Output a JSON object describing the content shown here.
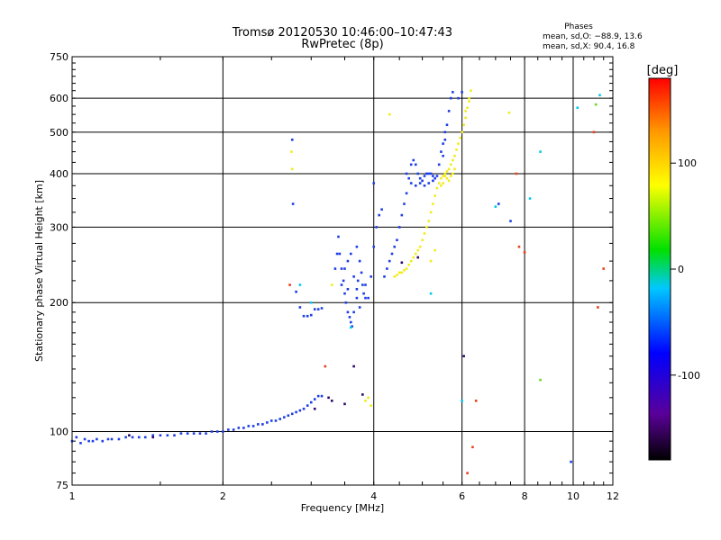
{
  "chart_data": {
    "type": "scatter",
    "title": "Tromsø 20120530 10:46:00–10:47:43",
    "subtitle": "RwPretec (8p)",
    "phases": {
      "heading": "Phases",
      "line1": "mean, sd,O: −88.9, 13.6",
      "line2": "mean, sd,X:  90.4, 16.8"
    },
    "xlabel": "Frequency [MHz]",
    "ylabel": "Stationary phase Virtual Height [km]",
    "x_scale": "log",
    "y_scale": "log",
    "xlim": [
      1,
      12
    ],
    "ylim": [
      75,
      750
    ],
    "x_ticks": [
      1,
      2,
      4,
      6,
      8,
      10,
      12
    ],
    "y_ticks": [
      75,
      100,
      200,
      300,
      400,
      500,
      600,
      750
    ],
    "grid": true,
    "colorbar": {
      "label": "[deg]",
      "range": [
        -180,
        180
      ],
      "ticks": [
        -100,
        0,
        100
      ]
    },
    "series": [
      {
        "color": "#1e3ee6",
        "phase_deg": -90,
        "points": [
          [
            1.0,
            95
          ],
          [
            1.02,
            97
          ],
          [
            1.04,
            94
          ],
          [
            1.06,
            96
          ],
          [
            1.08,
            95
          ],
          [
            1.1,
            95
          ],
          [
            1.12,
            96
          ],
          [
            1.15,
            95
          ],
          [
            1.18,
            96
          ],
          [
            1.2,
            96
          ],
          [
            1.24,
            96
          ],
          [
            1.28,
            97
          ],
          [
            1.32,
            97
          ],
          [
            1.36,
            97
          ],
          [
            1.4,
            97
          ],
          [
            1.45,
            98
          ],
          [
            1.5,
            98
          ],
          [
            1.55,
            98
          ],
          [
            1.6,
            98
          ],
          [
            1.65,
            99
          ],
          [
            1.7,
            99
          ],
          [
            1.75,
            99
          ],
          [
            1.8,
            99
          ],
          [
            1.85,
            99
          ],
          [
            1.9,
            100
          ],
          [
            1.95,
            100
          ],
          [
            2.0,
            100
          ],
          [
            2.05,
            101
          ],
          [
            2.1,
            101
          ],
          [
            2.15,
            102
          ],
          [
            2.2,
            102
          ],
          [
            2.25,
            103
          ],
          [
            2.3,
            103
          ],
          [
            2.35,
            104
          ],
          [
            2.4,
            104
          ],
          [
            2.45,
            105
          ],
          [
            2.5,
            106
          ],
          [
            2.55,
            106
          ],
          [
            2.6,
            107
          ],
          [
            2.65,
            108
          ],
          [
            2.7,
            109
          ],
          [
            2.75,
            110
          ],
          [
            2.8,
            111
          ],
          [
            2.85,
            112
          ],
          [
            2.9,
            113
          ],
          [
            2.95,
            115
          ],
          [
            3.0,
            117
          ],
          [
            3.05,
            119
          ],
          [
            3.1,
            121
          ],
          [
            3.15,
            121
          ],
          [
            2.8,
            212
          ],
          [
            2.85,
            195
          ],
          [
            2.9,
            186
          ],
          [
            2.95,
            186
          ],
          [
            3.0,
            187
          ],
          [
            3.05,
            193
          ],
          [
            3.1,
            193
          ],
          [
            3.15,
            194
          ],
          [
            3.35,
            240
          ],
          [
            3.38,
            260
          ],
          [
            3.4,
            285
          ],
          [
            3.42,
            260
          ],
          [
            3.45,
            240
          ],
          [
            3.48,
            225
          ],
          [
            3.5,
            210
          ],
          [
            3.52,
            200
          ],
          [
            3.55,
            190
          ],
          [
            3.58,
            185
          ],
          [
            3.6,
            180
          ],
          [
            3.62,
            176
          ],
          [
            3.65,
            190
          ],
          [
            3.7,
            215
          ],
          [
            3.72,
            225
          ],
          [
            3.75,
            250
          ],
          [
            3.78,
            235
          ],
          [
            3.8,
            220
          ],
          [
            3.82,
            210
          ],
          [
            3.85,
            205
          ],
          [
            3.9,
            205
          ],
          [
            3.95,
            230
          ],
          [
            4.0,
            270
          ],
          [
            4.05,
            300
          ],
          [
            4.1,
            320
          ],
          [
            4.15,
            330
          ],
          [
            3.5,
            240
          ],
          [
            3.55,
            250
          ],
          [
            3.6,
            260
          ],
          [
            3.7,
            270
          ],
          [
            3.45,
            220
          ],
          [
            3.55,
            215
          ],
          [
            3.65,
            230
          ],
          [
            3.7,
            205
          ],
          [
            3.75,
            195
          ],
          [
            3.85,
            220
          ],
          [
            4.2,
            230
          ],
          [
            4.25,
            240
          ],
          [
            4.3,
            250
          ],
          [
            4.35,
            260
          ],
          [
            4.4,
            270
          ],
          [
            4.45,
            280
          ],
          [
            4.5,
            300
          ],
          [
            4.55,
            320
          ],
          [
            4.6,
            340
          ],
          [
            4.65,
            360
          ],
          [
            4.7,
            390
          ],
          [
            4.75,
            420
          ],
          [
            4.8,
            430
          ],
          [
            4.85,
            420
          ],
          [
            4.9,
            400
          ],
          [
            4.95,
            390
          ],
          [
            5.0,
            385
          ],
          [
            5.05,
            395
          ],
          [
            5.1,
            400
          ],
          [
            5.15,
            400
          ],
          [
            5.2,
            400
          ],
          [
            5.25,
            395
          ],
          [
            5.3,
            390
          ],
          [
            5.35,
            395
          ],
          [
            5.4,
            420
          ],
          [
            5.45,
            450
          ],
          [
            5.5,
            470
          ],
          [
            5.55,
            500
          ],
          [
            5.6,
            520
          ],
          [
            5.65,
            560
          ],
          [
            5.7,
            600
          ],
          [
            5.75,
            620
          ],
          [
            4.65,
            400
          ],
          [
            4.75,
            380
          ],
          [
            4.85,
            375
          ],
          [
            4.95,
            380
          ],
          [
            5.05,
            375
          ],
          [
            5.15,
            380
          ],
          [
            5.25,
            385
          ],
          [
            2.75,
            480
          ],
          [
            2.76,
            340
          ],
          [
            4.0,
            380
          ],
          [
            5.5,
            440
          ],
          [
            5.55,
            480
          ],
          [
            6.0,
            620
          ],
          [
            5.9,
            600
          ],
          [
            7.5,
            310
          ],
          [
            7.1,
            340
          ],
          [
            9.9,
            85
          ]
        ]
      },
      {
        "color": "#f2ec1c",
        "phase_deg": 95,
        "points": [
          [
            4.4,
            230
          ],
          [
            4.45,
            232
          ],
          [
            4.5,
            235
          ],
          [
            4.55,
            235
          ],
          [
            4.6,
            238
          ],
          [
            4.65,
            240
          ],
          [
            4.7,
            245
          ],
          [
            4.75,
            250
          ],
          [
            4.8,
            255
          ],
          [
            4.85,
            260
          ],
          [
            4.9,
            265
          ],
          [
            4.95,
            270
          ],
          [
            5.0,
            280
          ],
          [
            5.05,
            290
          ],
          [
            5.1,
            300
          ],
          [
            5.15,
            310
          ],
          [
            5.2,
            325
          ],
          [
            5.25,
            340
          ],
          [
            5.3,
            355
          ],
          [
            5.35,
            370
          ],
          [
            5.4,
            380
          ],
          [
            5.45,
            390
          ],
          [
            5.5,
            395
          ],
          [
            5.55,
            400
          ],
          [
            5.6,
            405
          ],
          [
            5.65,
            410
          ],
          [
            5.7,
            420
          ],
          [
            5.75,
            430
          ],
          [
            5.8,
            440
          ],
          [
            5.85,
            455
          ],
          [
            5.9,
            470
          ],
          [
            5.95,
            485
          ],
          [
            6.0,
            500
          ],
          [
            6.05,
            520
          ],
          [
            6.1,
            540
          ],
          [
            6.15,
            570
          ],
          [
            6.2,
            600
          ],
          [
            6.25,
            625
          ],
          [
            5.6,
            390
          ],
          [
            5.65,
            385
          ],
          [
            5.7,
            395
          ],
          [
            5.75,
            400
          ],
          [
            5.8,
            410
          ],
          [
            5.5,
            380
          ],
          [
            5.45,
            375
          ],
          [
            5.55,
            395
          ],
          [
            6.1,
            560
          ],
          [
            6.2,
            590
          ],
          [
            2.74,
            450
          ],
          [
            2.75,
            410
          ],
          [
            3.85,
            118
          ],
          [
            3.9,
            120
          ],
          [
            3.95,
            115
          ],
          [
            4.3,
            550
          ],
          [
            3.3,
            220
          ],
          [
            7.45,
            555
          ],
          [
            5.3,
            265
          ],
          [
            5.2,
            250
          ]
        ]
      },
      {
        "color": "#e8401c",
        "phase_deg": 155,
        "points": [
          [
            2.72,
            220
          ],
          [
            3.2,
            142
          ],
          [
            6.3,
            92
          ],
          [
            6.15,
            80
          ],
          [
            6.4,
            118
          ],
          [
            7.8,
            270
          ],
          [
            8.0,
            262
          ],
          [
            7.7,
            400
          ],
          [
            11.5,
            240
          ],
          [
            11.2,
            195
          ],
          [
            11.0,
            500
          ]
        ]
      },
      {
        "color": "#00c8f0",
        "phase_deg": -20,
        "points": [
          [
            2.85,
            220
          ],
          [
            3.0,
            200
          ],
          [
            3.6,
            175
          ],
          [
            5.2,
            210
          ],
          [
            8.6,
            450
          ],
          [
            6.0,
            118
          ],
          [
            7.0,
            335
          ],
          [
            8.2,
            350
          ],
          [
            10.2,
            570
          ],
          [
            11.3,
            610
          ]
        ]
      },
      {
        "color": "#2a0a6a",
        "phase_deg": -140,
        "points": [
          [
            1.3,
            98
          ],
          [
            1.45,
            97
          ],
          [
            3.05,
            113
          ],
          [
            3.25,
            120
          ],
          [
            3.3,
            118
          ],
          [
            3.5,
            116
          ],
          [
            3.65,
            142
          ],
          [
            3.8,
            122
          ],
          [
            4.55,
            248
          ],
          [
            4.9,
            255
          ],
          [
            6.05,
            150
          ]
        ]
      },
      {
        "color": "#6ad820",
        "phase_deg": 40,
        "points": [
          [
            8.6,
            132
          ],
          [
            11.1,
            580
          ]
        ]
      }
    ]
  }
}
